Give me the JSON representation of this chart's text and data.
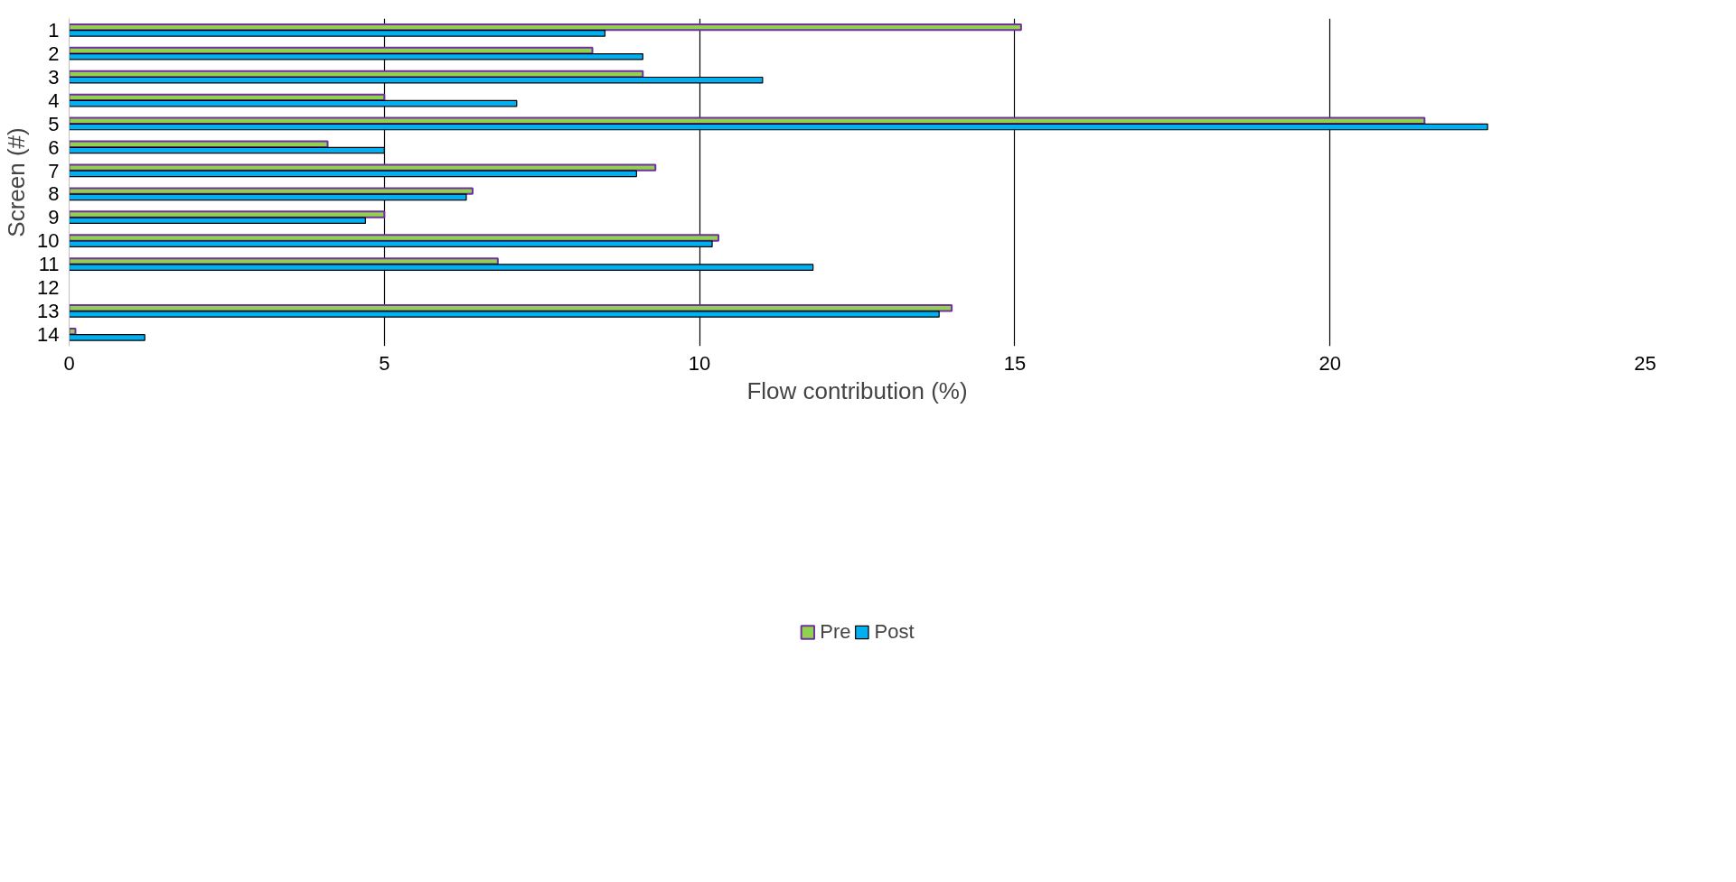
{
  "chart_data": {
    "type": "bar",
    "orientation": "horizontal",
    "xlabel": "Flow contribution (%)",
    "ylabel": "Screen (#)",
    "categories": [
      "1",
      "2",
      "3",
      "4",
      "5",
      "6",
      "7",
      "8",
      "9",
      "10",
      "11",
      "12",
      "13",
      "14"
    ],
    "series": [
      {
        "name": "Pre",
        "color": "#92d050",
        "values": [
          15.1,
          8.3,
          9.1,
          5.0,
          21.5,
          4.1,
          9.3,
          6.4,
          5.0,
          10.3,
          6.8,
          null,
          14.0,
          0.1
        ]
      },
      {
        "name": "Post",
        "color": "#00b0f0",
        "values": [
          8.5,
          9.1,
          11.0,
          7.1,
          22.5,
          5.0,
          9.0,
          6.3,
          4.7,
          10.2,
          11.8,
          null,
          13.8,
          1.2
        ]
      }
    ],
    "xlim": [
      0,
      25
    ],
    "xticks": [
      0,
      5,
      10,
      15,
      20,
      25
    ],
    "grid": "x",
    "legend": "bottom"
  }
}
